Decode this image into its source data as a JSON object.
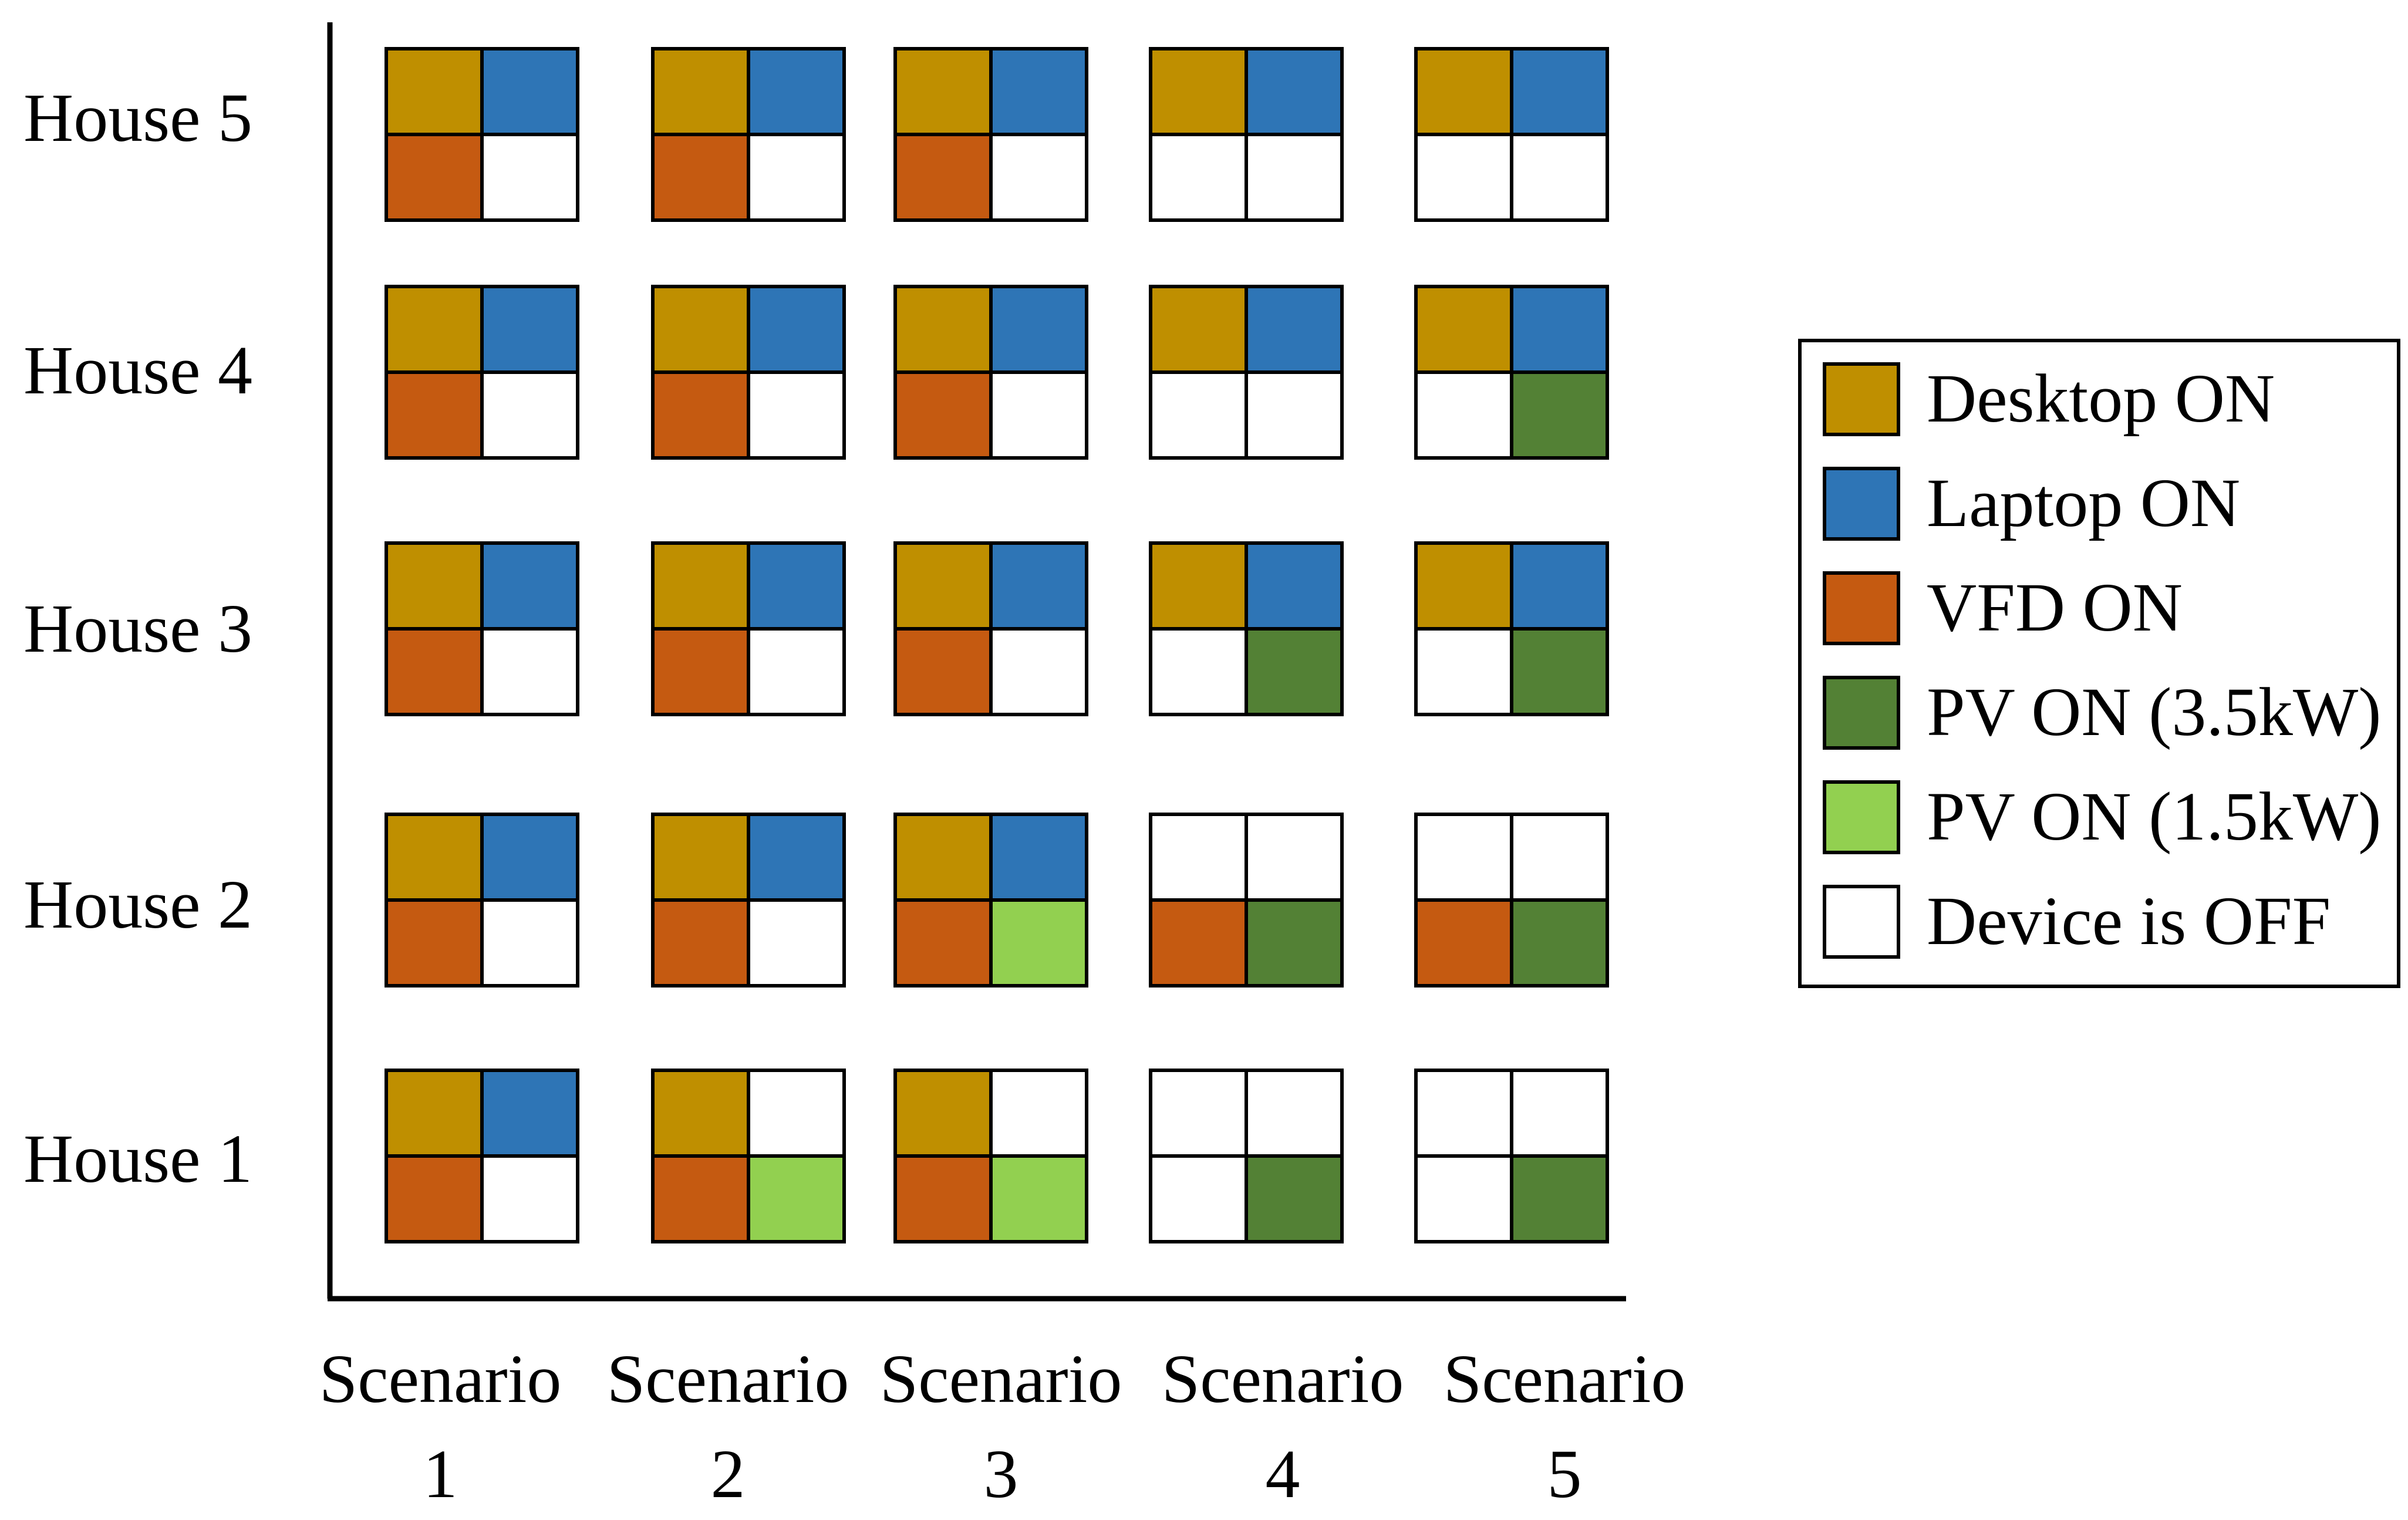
{
  "colors": {
    "desktop": "#BF8F00",
    "laptop": "#2E75B6",
    "vfd": "#C55A11",
    "pv35": "#538135",
    "pv15": "#92D050",
    "off": "#FFFFFF",
    "border": "#000000"
  },
  "houses": [
    "House 5",
    "House 4",
    "House 3",
    "House 2",
    "House 1"
  ],
  "scenarios": [
    {
      "line1": "Scenario",
      "line2": "1"
    },
    {
      "line1": "Scenario",
      "line2": "2"
    },
    {
      "line1": "Scenario",
      "line2": "3"
    },
    {
      "line1": "Scenario",
      "line2": "4"
    },
    {
      "line1": "Scenario",
      "line2": "5"
    }
  ],
  "grid": [
    [
      [
        "desktop",
        "laptop",
        "vfd",
        "off"
      ],
      [
        "desktop",
        "laptop",
        "vfd",
        "off"
      ],
      [
        "desktop",
        "laptop",
        "vfd",
        "off"
      ],
      [
        "desktop",
        "laptop",
        "off",
        "off"
      ],
      [
        "desktop",
        "laptop",
        "off",
        "off"
      ]
    ],
    [
      [
        "desktop",
        "laptop",
        "vfd",
        "off"
      ],
      [
        "desktop",
        "laptop",
        "vfd",
        "off"
      ],
      [
        "desktop",
        "laptop",
        "vfd",
        "off"
      ],
      [
        "desktop",
        "laptop",
        "off",
        "off"
      ],
      [
        "desktop",
        "laptop",
        "off",
        "pv35"
      ]
    ],
    [
      [
        "desktop",
        "laptop",
        "vfd",
        "off"
      ],
      [
        "desktop",
        "laptop",
        "vfd",
        "off"
      ],
      [
        "desktop",
        "laptop",
        "vfd",
        "off"
      ],
      [
        "desktop",
        "laptop",
        "off",
        "pv35"
      ],
      [
        "desktop",
        "laptop",
        "off",
        "pv35"
      ]
    ],
    [
      [
        "desktop",
        "laptop",
        "vfd",
        "off"
      ],
      [
        "desktop",
        "laptop",
        "vfd",
        "off"
      ],
      [
        "desktop",
        "laptop",
        "vfd",
        "pv15"
      ],
      [
        "off",
        "off",
        "vfd",
        "pv35"
      ],
      [
        "off",
        "off",
        "vfd",
        "pv35"
      ]
    ],
    [
      [
        "desktop",
        "laptop",
        "vfd",
        "off"
      ],
      [
        "desktop",
        "off",
        "vfd",
        "pv15"
      ],
      [
        "desktop",
        "off",
        "vfd",
        "pv15"
      ],
      [
        "off",
        "off",
        "off",
        "pv35"
      ],
      [
        "off",
        "off",
        "off",
        "pv35"
      ]
    ]
  ],
  "legend": [
    {
      "key": "desktop",
      "label": "Desktop ON"
    },
    {
      "key": "laptop",
      "label": "Laptop ON"
    },
    {
      "key": "vfd",
      "label": "VFD ON"
    },
    {
      "key": "pv35",
      "label": "PV ON (3.5kW)"
    },
    {
      "key": "pv15",
      "label": "PV ON (1.5kW)"
    },
    {
      "key": "off",
      "label": "Device is OFF"
    }
  ]
}
